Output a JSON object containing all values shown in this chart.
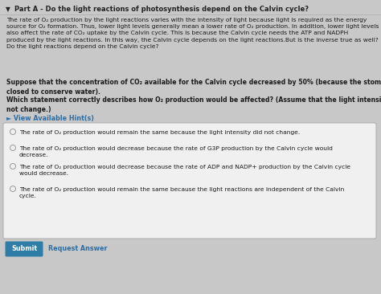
{
  "bg_color": "#c8c8c8",
  "content_bg": "#e0e0e0",
  "title_text": "Part A - Do the light reactions of photosynthesis depend on the Calvin cycle?",
  "body_text": "The rate of O₂ production by the light reactions varies with the intensity of light because light is required as the energy\nsource for O₂ formation. Thus, lower light levels generally mean a lower rate of O₂ production. In addition, lower light levels\nalso affect the rate of CO₂ uptake by the Calvin cycle. This is because the Calvin cycle needs the ATP and NADPH\nproduced by the light reactions. In this way, the Calvin cycle depends on the light reactions.But is the inverse true as well?\nDo the light reactions depend on the Calvin cycle?",
  "suppose_text": "Suppose that the concentration of CO₂ available for the Calvin cycle decreased by 50% (because the stomata\nclosed to conserve water).",
  "which_text": "Which statement correctly describes how O₂ production would be affected? (Assume that the light intensity does\nnot change.)",
  "hint_text": "► View Available Hint(s)",
  "options": [
    "The rate of O₂ production would remain the same because the light intensity did not change.",
    "The rate of O₂ production would decrease because the rate of G3P production by the Calvin cycle would\ndecrease.",
    "The rate of O₂ production would decrease because the rate of ADP and NADP+ production by the Calvin cycle\nwould decrease.",
    "The rate of O₂ production would remain the same because the light reactions are independent of the Calvin\ncycle."
  ],
  "submit_text": "Submit",
  "request_text": "Request Answer",
  "submit_bg": "#2e7da6",
  "text_color": "#1a1a1a",
  "hint_color": "#2e6da4",
  "options_box_bg": "#f0f0f0",
  "options_box_border": "#aaaaaa",
  "title_color": "#222222"
}
